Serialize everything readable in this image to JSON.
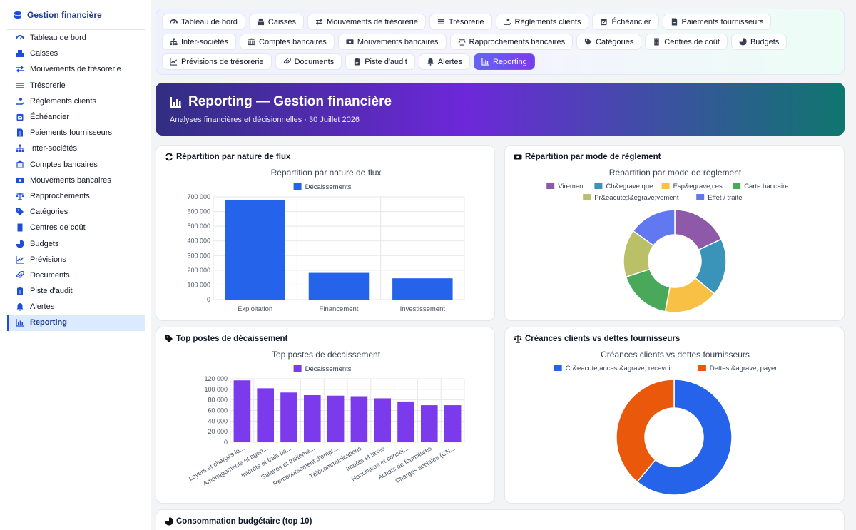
{
  "app": {
    "title": "Gestion financière"
  },
  "sidebar": {
    "items": [
      {
        "label": "Tableau de bord",
        "icon": "dashboard-icon"
      },
      {
        "label": "Caisses",
        "icon": "cash-register-icon"
      },
      {
        "label": "Mouvements de trésorerie",
        "icon": "exchange-icon"
      },
      {
        "label": "Trésorerie",
        "icon": "list-icon"
      },
      {
        "label": "Règlements clients",
        "icon": "hand-coin-icon"
      },
      {
        "label": "Échéancier",
        "icon": "calendar-icon"
      },
      {
        "label": "Paiements fournisseurs",
        "icon": "invoice-icon"
      },
      {
        "label": "Inter-sociétés",
        "icon": "sitemap-icon"
      },
      {
        "label": "Comptes bancaires",
        "icon": "bank-icon"
      },
      {
        "label": "Mouvements bancaires",
        "icon": "money-bill-icon"
      },
      {
        "label": "Rapprochements",
        "icon": "scale-icon"
      },
      {
        "label": "Catégories",
        "icon": "tags-icon"
      },
      {
        "label": "Centres de coût",
        "icon": "building-icon"
      },
      {
        "label": "Budgets",
        "icon": "pie-icon"
      },
      {
        "label": "Prévisions",
        "icon": "line-chart-icon"
      },
      {
        "label": "Documents",
        "icon": "paperclip-icon"
      },
      {
        "label": "Piste d'audit",
        "icon": "clipboard-icon"
      },
      {
        "label": "Alertes",
        "icon": "bell-icon"
      },
      {
        "label": "Reporting",
        "icon": "bar-chart-icon",
        "active": true
      }
    ]
  },
  "tabs": [
    {
      "label": "Tableau de bord",
      "icon": "dashboard-icon"
    },
    {
      "label": "Caisses",
      "icon": "cash-register-icon"
    },
    {
      "label": "Mouvements de trésorerie",
      "icon": "exchange-icon"
    },
    {
      "label": "Trésorerie",
      "icon": "list-icon"
    },
    {
      "label": "Règlements clients",
      "icon": "hand-coin-icon"
    },
    {
      "label": "Échéancier",
      "icon": "calendar-icon"
    },
    {
      "label": "Paiements fournisseurs",
      "icon": "invoice-icon"
    },
    {
      "label": "Inter-sociétés",
      "icon": "sitemap-icon"
    },
    {
      "label": "Comptes bancaires",
      "icon": "bank-icon"
    },
    {
      "label": "Mouvements bancaires",
      "icon": "money-bill-icon"
    },
    {
      "label": "Rapprochements bancaires",
      "icon": "scale-icon"
    },
    {
      "label": "Catégories",
      "icon": "tags-icon"
    },
    {
      "label": "Centres de coût",
      "icon": "building-icon"
    },
    {
      "label": "Budgets",
      "icon": "pie-icon"
    },
    {
      "label": "Prévisions de trésorerie",
      "icon": "line-chart-icon"
    },
    {
      "label": "Documents",
      "icon": "paperclip-icon"
    },
    {
      "label": "Piste d'audit",
      "icon": "clipboard-icon"
    },
    {
      "label": "Alertes",
      "icon": "bell-icon"
    },
    {
      "label": "Reporting",
      "icon": "bar-chart-icon",
      "active": true
    }
  ],
  "banner": {
    "title": "Reporting — Gestion financière",
    "subtitle": "Analyses financières et décisionnelles · 30 Juillet 2026"
  },
  "cards": {
    "flux": {
      "title": "Répartition par nature de flux",
      "icon": "sync-icon"
    },
    "modes": {
      "title": "Répartition par mode de règlement",
      "icon": "money-bill-icon"
    },
    "postes": {
      "title": "Top postes de décaissement",
      "icon": "tags-icon"
    },
    "creances": {
      "title": "Créances clients vs dettes fournisseurs",
      "icon": "scale-icon"
    },
    "budget": {
      "title": "Consommation budgétaire (top 10)",
      "icon": "pie-icon"
    }
  },
  "chart_data": [
    {
      "type": "bar",
      "title": "Répartition par nature de flux",
      "categories": [
        "Exploitation",
        "Financement",
        "Investissement"
      ],
      "series": [
        {
          "name": "Décaissements",
          "values": [
            680000,
            182000,
            145000
          ],
          "color": "#2563eb"
        }
      ],
      "yticks": [
        "0",
        "100 000",
        "200 000",
        "300 000",
        "400 000",
        "500 000",
        "600 000",
        "700 000"
      ],
      "ylim": [
        0,
        700000
      ],
      "legend": "top",
      "grid": true
    },
    {
      "type": "pie",
      "title": "Répartition par mode de règlement",
      "labels": [
        "Virement",
        "Ch&egrave;que",
        "Esp&egrave;ces",
        "Carte bancaire",
        "Pr&eacute;l&egrave;vement",
        "Effet / traite"
      ],
      "values": [
        18,
        18,
        17,
        17,
        15,
        15
      ],
      "colors": [
        "#8e59a8",
        "#3a93b8",
        "#f8c146",
        "#4aa85b",
        "#b9c068",
        "#6178f0"
      ],
      "donut": true,
      "legend": "top"
    },
    {
      "type": "bar",
      "title": "Top postes de décaissement",
      "categories": [
        "Loyers et charges lo...",
        "Aménagements et agen...",
        "Intérêts et frais ba...",
        "Salaires et traiteme...",
        "Remboursement d'empr...",
        "Télécommunications",
        "Impôts et taxes",
        "Honoraires et consei...",
        "Achats de fournitures",
        "Charges sociales (CN..."
      ],
      "series": [
        {
          "name": "Décaissements",
          "values": [
            117000,
            102000,
            94000,
            89000,
            88000,
            87000,
            83000,
            77000,
            70000,
            70000
          ],
          "color": "#7c3aed"
        }
      ],
      "yticks": [
        "0",
        "20 000",
        "40 000",
        "60 000",
        "80 000",
        "100 000",
        "120 000"
      ],
      "ylim": [
        0,
        120000
      ],
      "legend": "top",
      "grid": true
    },
    {
      "type": "pie",
      "title": "Créances clients vs dettes fournisseurs",
      "labels": [
        "Cr&eacute;ances &agrave; recevoir",
        "Dettes &agrave; payer"
      ],
      "values": [
        61,
        39
      ],
      "colors": [
        "#2563eb",
        "#ea580c"
      ],
      "donut": true,
      "legend": "top"
    }
  ]
}
